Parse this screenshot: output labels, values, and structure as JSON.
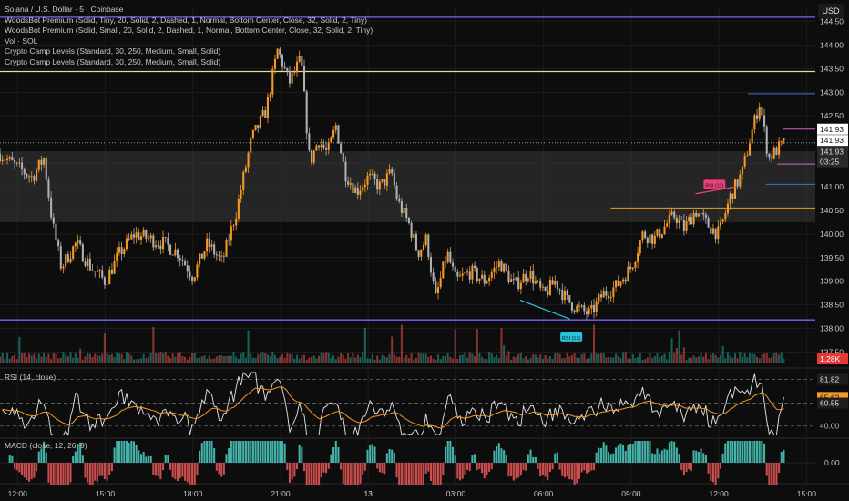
{
  "header": {
    "symbol": "Solana / U.S. Dollar · 5 · Coinbase",
    "currency": "USD",
    "indicators": [
      "WoodsBot Premium (Solid, Tiny, 20, Solid, 2, Dashed, 1, Normal, Bottom Center, Close, 32, Solid, 2, Tiny)",
      "WoodsBot Premium (Solid, Small, 20, Solid, 2, Dashed, 1, Normal, Bottom Center, Close, 32, Solid, 2, Tiny)",
      "Vol · SOL",
      "Crypto Camp Levels (Standard, 30, 250, Medium, Small, Solid)",
      "Crypto Camp Levels (Standard, 30, 250, Medium, Small, Solid)"
    ]
  },
  "chart_data": [
    {
      "type": "candlestick",
      "pane": "price",
      "ylim": [
        137.2,
        144.8
      ],
      "y_ticks": [
        "144.50",
        "144.00",
        "143.50",
        "143.00",
        "142.50",
        "142.00",
        "141.50",
        "141.00",
        "140.50",
        "140.00",
        "139.50",
        "139.00",
        "138.50",
        "138.00",
        "137.50"
      ],
      "y_tick_values": [
        144.5,
        144.0,
        143.5,
        143.0,
        142.5,
        142.0,
        141.5,
        141.0,
        140.5,
        140.0,
        139.5,
        139.0,
        138.5,
        138.0,
        137.5
      ],
      "x_ticks": [
        "12:00",
        "15:00",
        "18:00",
        "21:00",
        "13",
        "03:00",
        "06:00",
        "09:00",
        "12:00",
        "15:00"
      ],
      "x_tick_hours": [
        0,
        3,
        6,
        9,
        12,
        15,
        18,
        21,
        24,
        27
      ],
      "x_range_hours": [
        -0.6,
        27.3
      ],
      "bar_hours": 0.0833,
      "close_anchors": [
        [
          -0.6,
          141.7
        ],
        [
          0,
          141.4
        ],
        [
          0.5,
          141.2
        ],
        [
          0.9,
          141.6
        ],
        [
          1.2,
          140.2
        ],
        [
          1.5,
          139.3
        ],
        [
          2.0,
          139.8
        ],
        [
          2.5,
          139.3
        ],
        [
          3.0,
          139.0
        ],
        [
          3.5,
          139.6
        ],
        [
          4.0,
          140.0
        ],
        [
          5.0,
          139.8
        ],
        [
          5.5,
          139.6
        ],
        [
          6.0,
          139.1
        ],
        [
          6.5,
          139.8
        ],
        [
          7.0,
          139.4
        ],
        [
          7.5,
          140.5
        ],
        [
          8.0,
          142.0
        ],
        [
          8.5,
          142.6
        ],
        [
          8.9,
          143.9
        ],
        [
          9.3,
          143.2
        ],
        [
          9.7,
          143.7
        ],
        [
          10.0,
          141.5
        ],
        [
          10.3,
          142.0
        ],
        [
          10.6,
          141.7
        ],
        [
          10.9,
          142.3
        ],
        [
          11.2,
          141.3
        ],
        [
          11.6,
          140.9
        ],
        [
          12.0,
          141.2
        ],
        [
          12.4,
          141.0
        ],
        [
          12.8,
          141.3
        ],
        [
          13.0,
          140.7
        ],
        [
          13.4,
          140.2
        ],
        [
          13.7,
          139.6
        ],
        [
          14.0,
          139.9
        ],
        [
          14.3,
          138.6
        ],
        [
          14.7,
          139.6
        ],
        [
          15.0,
          139.0
        ],
        [
          15.5,
          139.2
        ],
        [
          16.0,
          139.0
        ],
        [
          16.5,
          139.4
        ],
        [
          17.0,
          138.9
        ],
        [
          17.5,
          139.2
        ],
        [
          18.0,
          138.7
        ],
        [
          18.4,
          139.0
        ],
        [
          18.8,
          138.6
        ],
        [
          19.2,
          138.4
        ],
        [
          19.6,
          138.3
        ],
        [
          20.0,
          138.7
        ],
        [
          20.5,
          138.9
        ],
        [
          21.0,
          139.3
        ],
        [
          21.4,
          140.0
        ],
        [
          21.8,
          139.9
        ],
        [
          22.2,
          140.2
        ],
        [
          22.5,
          140.4
        ],
        [
          22.8,
          140.1
        ],
        [
          23.2,
          140.5
        ],
        [
          23.6,
          140.2
        ],
        [
          24.0,
          140.0
        ],
        [
          24.4,
          140.8
        ],
        [
          24.8,
          141.3
        ],
        [
          25.1,
          142.1
        ],
        [
          25.4,
          142.8
        ],
        [
          25.7,
          141.6
        ],
        [
          26.0,
          141.8
        ],
        [
          26.3,
          141.93
        ]
      ],
      "horizontal_levels": [
        {
          "value": 144.59,
          "color": "#7b61ff"
        },
        {
          "value": 143.44,
          "color": "#e8d9a8"
        },
        {
          "value": 138.18,
          "color": "#7b61ff"
        },
        {
          "value": 141.93,
          "color": "#9a9a9a",
          "dotted": true
        }
      ],
      "zones": [
        {
          "from": 140.25,
          "to": 141.75,
          "color": "#3a3a3a"
        }
      ],
      "short_levels": [
        {
          "value": 140.55,
          "x_from": 20.3,
          "x_to": 27.3,
          "color": "#f0a020"
        },
        {
          "value": 142.97,
          "x_from": 25.0,
          "x_to": 27.3,
          "color": "#4a6bd6"
        },
        {
          "value": 142.22,
          "x_from": 26.2,
          "x_to": 27.3,
          "color": "#d060d0"
        },
        {
          "value": 141.48,
          "x_from": 26.0,
          "x_to": 27.3,
          "color": "#d060d0"
        },
        {
          "value": 141.05,
          "x_from": 25.6,
          "x_to": 27.3,
          "color": "#4a6bd6"
        }
      ],
      "price_tags": [
        {
          "label": "141.93",
          "value": 142.22,
          "bg": "#ffffff",
          "fg": "#111111"
        },
        {
          "label": "141.93",
          "value": 141.98,
          "bg": "#ffffff",
          "fg": "#111111"
        },
        {
          "label": "141.93",
          "value": 141.74,
          "bg": "#2a2a2a",
          "fg": "#dddddd"
        },
        {
          "label": "03:25",
          "value": 141.53,
          "bg": "#2a2a2a",
          "fg": "#dddddd"
        }
      ],
      "signals": [
        {
          "label": "RSI (13)",
          "x": 18.95,
          "value": 137.82,
          "color": "#26c6da"
        },
        {
          "label": "RSI (11)",
          "x": 23.85,
          "value": 141.05,
          "color": "#ec407a"
        }
      ],
      "divergence_lines": [
        {
          "x1": 17.2,
          "y1": 138.6,
          "x2": 18.9,
          "y2": 138.2,
          "color": "#26c6da"
        },
        {
          "x1": 23.2,
          "y1": 140.85,
          "x2": 24.6,
          "y2": 141.0,
          "color": "#ec407a"
        }
      ]
    },
    {
      "type": "bar",
      "pane": "volume",
      "name": "Vol · SOL",
      "last_label": "1.28K",
      "up_color": "#26a69a",
      "down_color": "#ef5350"
    },
    {
      "type": "line",
      "pane": "rsi",
      "title": "RSI (14, close)",
      "ylim": [
        30,
        92
      ],
      "levels": [
        81.82,
        60.55,
        40.0
      ],
      "tags": [
        {
          "label": "81.82",
          "value": 81.82,
          "bg": "#1e1e1e",
          "fg": "#e0e0e0"
        },
        {
          "label": "65.62",
          "value": 65.62,
          "bg": "#f59a23",
          "fg": "#111111"
        },
        {
          "label": "60.55",
          "value": 60.55,
          "bg": "#1e1e1e",
          "fg": "#e0e0e0"
        },
        {
          "label": "40.00",
          "value": 40.0,
          "bg": "none",
          "fg": "#bdbdbd"
        }
      ],
      "series": [
        {
          "name": "RSI",
          "color": "#e8e8e8"
        },
        {
          "name": "",
          "color": "#f59a23"
        }
      ]
    },
    {
      "type": "bar",
      "pane": "macd",
      "title": "MACD (close, 12, 26, 9)",
      "zero_label": "0.00",
      "up_color": "#4fd1c5",
      "down_color": "#f05a5a"
    }
  ],
  "colors": {
    "up": "#f59a23",
    "down": "#b0b0b0",
    "grid": "#1c1c1c",
    "text": "#c9c9c9"
  }
}
